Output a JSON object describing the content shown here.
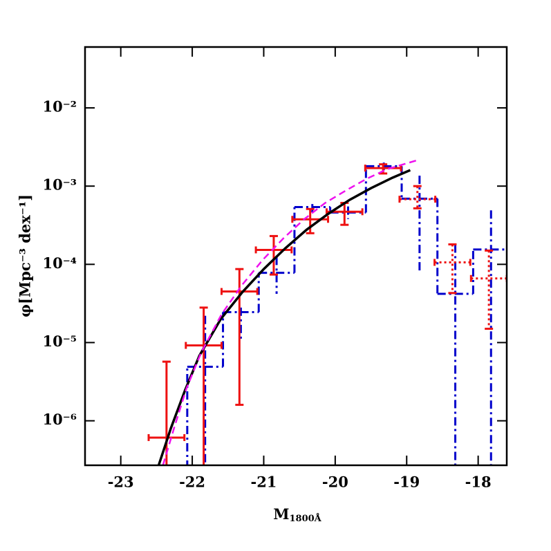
{
  "chart_data": {
    "type": "line",
    "xlabel": "M",
    "xlabel_subscript": "1800Å",
    "ylabel": "φ[Mpc⁻³ dex⁻¹]",
    "xlim": [
      -23.5,
      -17.6
    ],
    "xticks": [
      -23,
      -22,
      -21,
      -20,
      -19,
      -18
    ],
    "ylim": [
      2.7e-07,
      0.06
    ],
    "yscale": "log",
    "yticks": [
      {
        "value": 1e-06,
        "label": "10⁻⁶"
      },
      {
        "value": 1e-05,
        "label": "10⁻⁵"
      },
      {
        "value": 0.0001,
        "label": "10⁻⁴"
      },
      {
        "value": 0.001,
        "label": "10⁻³"
      },
      {
        "value": 0.01,
        "label": "10⁻²"
      }
    ],
    "series": [
      {
        "type": "step",
        "color": "#0000cc",
        "dash": "12,5,3,5",
        "bins": [
          -22.07,
          -21.57,
          -21.07,
          -20.57,
          -20.07,
          -19.57,
          -19.07,
          -18.57,
          -18.07,
          -17.57
        ],
        "values": [
          4.9e-06,
          2.45e-05,
          7.8e-05,
          0.00054,
          0.00046,
          0.0018,
          0.00069,
          4.2e-05,
          0.000155
        ],
        "y_high": [
          2.2e-05,
          2.8e-05,
          0.000125,
          0.00059,
          0.00055,
          0.002,
          0.00136,
          0.00018,
          0.00049
        ],
        "y_low": [
          null,
          1.08e-05,
          4.2e-05,
          0.00046,
          0.00038,
          0.0016,
          8.1e-05,
          null,
          null
        ]
      },
      {
        "type": "errorbar",
        "color": "#ee1111",
        "dash": "none",
        "xerr": 0.25,
        "x": [
          -22.36,
          -21.84,
          -21.34,
          -20.86,
          -20.35,
          -19.87,
          -19.33
        ],
        "values": [
          6.1e-07,
          9.2e-06,
          4.5e-05,
          0.000153,
          0.000376,
          0.00047,
          0.0017
        ],
        "y_high": [
          5.7e-06,
          2.8e-05,
          8.7e-05,
          0.00023,
          0.00051,
          0.00061,
          0.0019
        ],
        "y_low": [
          null,
          null,
          1.6e-06,
          7.4e-05,
          0.00025,
          0.00032,
          0.00145
        ]
      },
      {
        "type": "errorbar",
        "color": "#ee1111",
        "dash": "3,4",
        "xerr": 0.25,
        "x": [
          -18.85,
          -18.36,
          -17.85
        ],
        "values": [
          0.00068,
          0.000106,
          6.6e-05
        ],
        "y_high": [
          0.001,
          0.00018,
          0.00015
        ],
        "y_low": [
          0.00052,
          4.3e-05,
          1.5e-05
        ]
      },
      {
        "type": "line",
        "color": "#000000",
        "dash": "none",
        "width": 3.5,
        "x": [
          -22.47,
          -22.3,
          -22.1,
          -21.9,
          -21.6,
          -21.3,
          -21.0,
          -20.7,
          -20.4,
          -20.1,
          -19.8,
          -19.5,
          -19.2,
          -18.95
        ],
        "values": [
          2.7e-07,
          8e-07,
          2.46e-06,
          6.8e-06,
          2e-05,
          4.4e-05,
          8.7e-05,
          0.00016,
          0.000277,
          0.00044,
          0.000665,
          0.00094,
          0.00128,
          0.0016
        ]
      },
      {
        "type": "line",
        "color": "#ee11ee",
        "dash": "10,6",
        "width": 2.5,
        "x": [
          -22.41,
          -22.25,
          -22.08,
          -21.88,
          -21.59,
          -21.3,
          -21.01,
          -20.72,
          -20.43,
          -20.14,
          -19.85,
          -19.56,
          -19.27,
          -18.87
        ],
        "values": [
          2.7e-07,
          8.3e-07,
          2.6e-06,
          7.3e-06,
          2.3e-05,
          5.5e-05,
          0.000115,
          0.000217,
          0.00038,
          0.00061,
          0.00088,
          0.00124,
          0.00165,
          0.00212
        ]
      }
    ]
  }
}
